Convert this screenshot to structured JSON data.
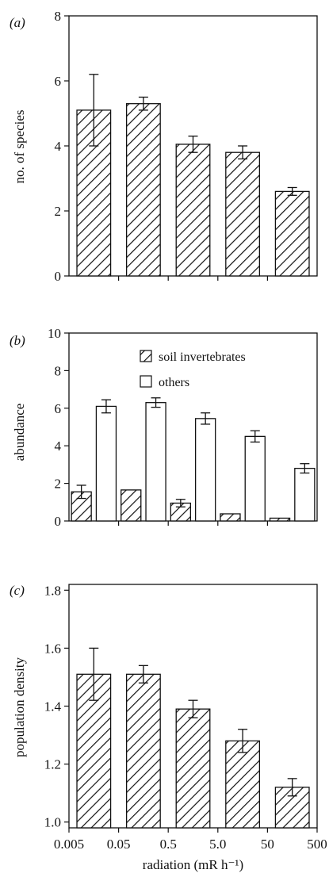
{
  "chart_data": [
    {
      "panel_label": "(a)",
      "type": "bar",
      "ylabel": "no. of species",
      "ylim": [
        0,
        8
      ],
      "yticks": [
        0,
        2,
        4,
        6,
        8
      ],
      "categories": [
        "0.005–0.05",
        "0.05–0.5",
        "0.5–5.0",
        "5.0–50",
        "50–500"
      ],
      "series": [
        {
          "pattern": "hatch",
          "values": [
            5.1,
            5.3,
            4.05,
            3.8,
            2.6
          ],
          "errors": [
            1.1,
            0.2,
            0.25,
            0.2,
            0.12
          ]
        }
      ],
      "legend": []
    },
    {
      "panel_label": "(b)",
      "type": "bar",
      "ylabel": "abundance",
      "ylim": [
        0,
        10
      ],
      "yticks": [
        0,
        2,
        4,
        6,
        8,
        10
      ],
      "categories": [
        "0.005–0.05",
        "0.05–0.5",
        "0.5–5.0",
        "5.0–50",
        "50–500"
      ],
      "series": [
        {
          "name": "soil invertebrates",
          "pattern": "hatch",
          "values": [
            1.55,
            1.65,
            0.95,
            0.38,
            0.15
          ],
          "errors": [
            0.35,
            0,
            0.2,
            0,
            0
          ]
        },
        {
          "name": "others",
          "pattern": "open",
          "values": [
            6.1,
            6.3,
            5.45,
            4.5,
            2.8
          ],
          "errors": [
            0.35,
            0.25,
            0.3,
            0.3,
            0.25
          ]
        }
      ],
      "legend": [
        "soil invertebrates",
        "others"
      ],
      "legend_position": "top-right"
    },
    {
      "panel_label": "(c)",
      "type": "bar",
      "ylabel": "population density",
      "ylim": [
        0.98,
        1.82
      ],
      "yticks": [
        1.0,
        1.2,
        1.4,
        1.6,
        1.8
      ],
      "ytick_labels": [
        "1.0",
        "1.2",
        "1.4",
        "1.6",
        "1.8"
      ],
      "categories": [
        "0.005–0.05",
        "0.05–0.5",
        "0.5–5.0",
        "5.0–50",
        "50–500"
      ],
      "series": [
        {
          "pattern": "hatch",
          "values": [
            1.51,
            1.51,
            1.39,
            1.28,
            1.12
          ],
          "errors": [
            0.09,
            0.03,
            0.03,
            0.04,
            0.03
          ]
        }
      ],
      "legend": [],
      "xlabel": "radiation (mR h⁻¹)",
      "xtick_labels": [
        "0.005",
        "0.05",
        "0.5",
        "5.0",
        "50",
        "500"
      ]
    }
  ]
}
